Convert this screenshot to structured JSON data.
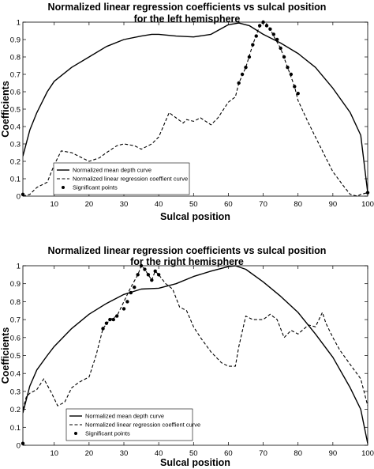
{
  "chart_data": [
    {
      "type": "line",
      "title": "Normalized linear regression coefficients vs sulcal position",
      "subtitle": "for the left hemisphere",
      "xlabel": "Sulcal position",
      "ylabel": "Coefficients",
      "xlim": [
        1,
        100
      ],
      "ylim": [
        0,
        1
      ],
      "xticks": [
        "10",
        "20",
        "30",
        "40",
        "50",
        "60",
        "70",
        "80",
        "90",
        "100"
      ],
      "yticks": [
        "0",
        "0.1",
        "0.2",
        "0.3",
        "0.4",
        "0.5",
        "0.6",
        "0.7",
        "0.8",
        "0.9",
        "1"
      ],
      "grid": false,
      "legend_position": "bottom-left",
      "legend": [
        "Normalized mean depth curve",
        "Normalized linear regression coeffient curve",
        "Significant points"
      ],
      "series": [
        {
          "name": "Normalized mean depth curve",
          "style": "solid",
          "x": [
            1,
            3,
            5,
            8,
            10,
            15,
            20,
            25,
            30,
            35,
            38,
            40,
            45,
            50,
            55,
            60,
            63,
            66,
            70,
            75,
            80,
            85,
            90,
            95,
            98,
            100
          ],
          "y": [
            0.23,
            0.38,
            0.48,
            0.6,
            0.66,
            0.74,
            0.8,
            0.86,
            0.9,
            0.92,
            0.93,
            0.93,
            0.92,
            0.915,
            0.93,
            0.985,
            0.995,
            0.98,
            0.93,
            0.88,
            0.82,
            0.74,
            0.62,
            0.48,
            0.35,
            0.02
          ]
        },
        {
          "name": "Normalized linear regression coeffient curve",
          "style": "dashed",
          "x": [
            1,
            3,
            5,
            8,
            10,
            12,
            15,
            17,
            20,
            23,
            25,
            28,
            30,
            33,
            35,
            38,
            40,
            43,
            45,
            47,
            48,
            50,
            52,
            55,
            57,
            60,
            62,
            63,
            65,
            67,
            69,
            70,
            71,
            72,
            73,
            75,
            77,
            79,
            80,
            83,
            85,
            88,
            90,
            93,
            95,
            97,
            98,
            100
          ],
          "y": [
            0.0,
            0.01,
            0.05,
            0.08,
            0.18,
            0.26,
            0.25,
            0.23,
            0.2,
            0.22,
            0.25,
            0.29,
            0.3,
            0.29,
            0.27,
            0.3,
            0.34,
            0.48,
            0.45,
            0.42,
            0.44,
            0.43,
            0.45,
            0.41,
            0.45,
            0.54,
            0.57,
            0.65,
            0.74,
            0.87,
            0.98,
            1.0,
            0.99,
            0.96,
            0.92,
            0.85,
            0.74,
            0.63,
            0.55,
            0.42,
            0.34,
            0.22,
            0.14,
            0.06,
            0.01,
            0.0,
            0.01,
            0.02
          ]
        }
      ],
      "significant_points": {
        "name": "Significant points",
        "x": [
          1,
          63,
          64,
          65,
          66,
          67,
          68,
          69,
          70,
          71,
          72,
          73,
          74,
          75,
          76,
          77,
          78,
          79,
          80,
          100
        ],
        "y": [
          0.01,
          0.65,
          0.7,
          0.74,
          0.8,
          0.87,
          0.92,
          0.98,
          1.0,
          0.98,
          0.96,
          0.93,
          0.9,
          0.85,
          0.8,
          0.74,
          0.7,
          0.63,
          0.59,
          0.02
        ]
      }
    },
    {
      "type": "line",
      "title": "Normalized linear regression coefficients vs sulcal position",
      "subtitle": "for the right hemisphere",
      "xlabel": "Sulcal position",
      "ylabel": "Coefficients",
      "xlim": [
        1,
        100
      ],
      "ylim": [
        0,
        1
      ],
      "xticks": [
        "10",
        "20",
        "30",
        "40",
        "50",
        "60",
        "70",
        "80",
        "90",
        "100"
      ],
      "yticks": [
        "0",
        "0.1",
        "0.2",
        "0.3",
        "0.4",
        "0.5",
        "0.6",
        "0.7",
        "0.8",
        "0.9",
        "1"
      ],
      "grid": false,
      "legend_position": "bottom-center",
      "legend": [
        "Normalized mean depth curve",
        "Normalized linear regression coeffient curve",
        "Significant points"
      ],
      "series": [
        {
          "name": "Normalized mean depth curve",
          "style": "solid",
          "x": [
            1,
            3,
            5,
            8,
            10,
            15,
            20,
            25,
            30,
            35,
            40,
            45,
            50,
            55,
            60,
            62,
            65,
            70,
            75,
            80,
            85,
            90,
            95,
            98,
            100
          ],
          "y": [
            0.18,
            0.33,
            0.42,
            0.5,
            0.55,
            0.65,
            0.73,
            0.79,
            0.84,
            0.87,
            0.875,
            0.9,
            0.94,
            0.97,
            0.995,
            1.0,
            0.98,
            0.91,
            0.83,
            0.74,
            0.62,
            0.49,
            0.32,
            0.2,
            0.01
          ]
        },
        {
          "name": "Normalized linear regression coeffient curve",
          "style": "dashed",
          "x": [
            1,
            2,
            3,
            5,
            7,
            9,
            11,
            13,
            15,
            17,
            20,
            22,
            24,
            26,
            28,
            30,
            32,
            34,
            35,
            36,
            37,
            38,
            39,
            40,
            42,
            44,
            46,
            48,
            50,
            52,
            55,
            58,
            60,
            62,
            63,
            65,
            67,
            70,
            72,
            74,
            76,
            78,
            80,
            83,
            85,
            87,
            88,
            90,
            92,
            95,
            98,
            100
          ],
          "y": [
            0.2,
            0.27,
            0.29,
            0.31,
            0.37,
            0.3,
            0.22,
            0.24,
            0.32,
            0.35,
            0.38,
            0.5,
            0.65,
            0.7,
            0.72,
            0.8,
            0.88,
            0.95,
            1.0,
            0.98,
            0.95,
            0.92,
            0.97,
            0.95,
            0.9,
            0.87,
            0.77,
            0.75,
            0.66,
            0.6,
            0.52,
            0.46,
            0.44,
            0.44,
            0.55,
            0.72,
            0.7,
            0.7,
            0.73,
            0.7,
            0.6,
            0.64,
            0.62,
            0.67,
            0.66,
            0.74,
            0.68,
            0.6,
            0.53,
            0.45,
            0.37,
            0.22
          ]
        }
      ],
      "significant_points": {
        "name": "Significant points",
        "x": [
          1,
          24,
          25,
          26,
          27,
          28,
          30,
          31,
          32,
          33,
          34,
          35,
          36,
          37,
          38,
          39,
          40
        ],
        "y": [
          0.01,
          0.65,
          0.68,
          0.7,
          0.7,
          0.72,
          0.76,
          0.8,
          0.85,
          0.88,
          0.95,
          1.0,
          0.98,
          0.95,
          0.92,
          0.97,
          0.95
        ]
      }
    }
  ]
}
